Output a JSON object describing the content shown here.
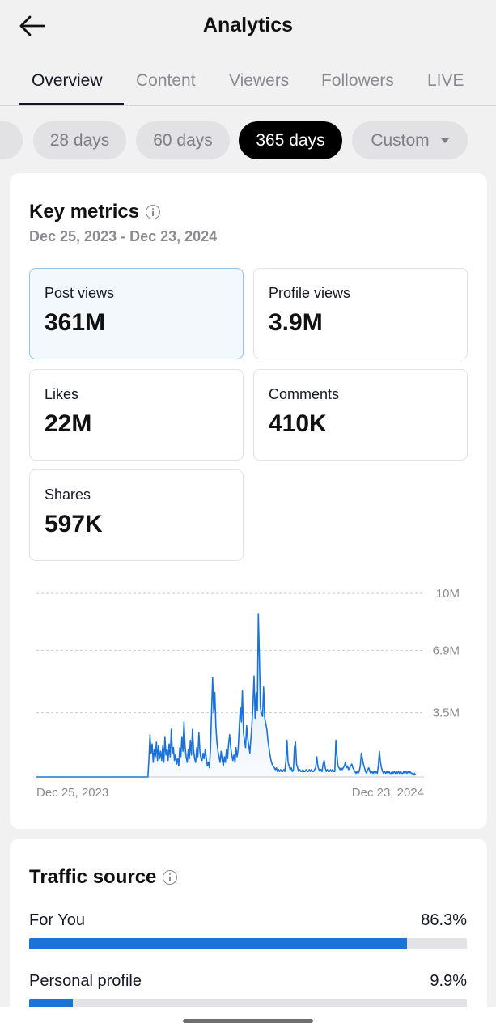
{
  "header": {
    "title": "Analytics"
  },
  "tabs": [
    {
      "label": "Overview",
      "active": true
    },
    {
      "label": "Content",
      "active": false
    },
    {
      "label": "Viewers",
      "active": false
    },
    {
      "label": "Followers",
      "active": false
    },
    {
      "label": "LIVE",
      "active": false
    }
  ],
  "ranges": [
    {
      "label": "28 days",
      "active": false
    },
    {
      "label": "60 days",
      "active": false
    },
    {
      "label": "365 days",
      "active": true
    },
    {
      "label": "Custom",
      "active": false
    }
  ],
  "key_metrics": {
    "title": "Key metrics",
    "date_range": "Dec 25, 2023 - Dec 23, 2024",
    "metrics": [
      {
        "label": "Post views",
        "value": "361M",
        "selected": true
      },
      {
        "label": "Profile views",
        "value": "3.9M",
        "selected": false
      },
      {
        "label": "Likes",
        "value": "22M",
        "selected": false
      },
      {
        "label": "Comments",
        "value": "410K",
        "selected": false
      },
      {
        "label": "Shares",
        "value": "597K",
        "selected": false
      }
    ]
  },
  "chart_data": {
    "type": "area",
    "title": "",
    "xlabel": "",
    "ylabel": "",
    "x_tick_labels": [
      "Dec 25, 2023",
      "Dec 23, 2024"
    ],
    "y_tick_labels": [
      "10M",
      "6.9M",
      "3.5M"
    ],
    "y_ticks": [
      10,
      6.9,
      3.5
    ],
    "ylim": [
      0,
      10.4
    ],
    "xlim": [
      0,
      365
    ],
    "grid": true,
    "color": "#1b73d9",
    "series": [
      {
        "values": [
          [
            0,
            0
          ],
          [
            105,
            0
          ],
          [
            106,
            1.0
          ],
          [
            107,
            2.3
          ],
          [
            108,
            1.3
          ],
          [
            109,
            1.8
          ],
          [
            110,
            0.8
          ],
          [
            111,
            1.5
          ],
          [
            112,
            1.1
          ],
          [
            113,
            1.9
          ],
          [
            114,
            0.9
          ],
          [
            115,
            1.7
          ],
          [
            116,
            1.0
          ],
          [
            117,
            1.4
          ],
          [
            118,
            0.9
          ],
          [
            119,
            1.7
          ],
          [
            120,
            0.8
          ],
          [
            121,
            2.2
          ],
          [
            122,
            1.2
          ],
          [
            123,
            1.5
          ],
          [
            124,
            0.9
          ],
          [
            125,
            1.8
          ],
          [
            126,
            1.1
          ],
          [
            127,
            2.6
          ],
          [
            128,
            1.3
          ],
          [
            129,
            1.6
          ],
          [
            130,
            0.9
          ],
          [
            131,
            1.2
          ],
          [
            132,
            0.7
          ],
          [
            133,
            1.0
          ],
          [
            134,
            0.6
          ],
          [
            135,
            1.6
          ],
          [
            136,
            1.1
          ],
          [
            137,
            2.2
          ],
          [
            138,
            1.4
          ],
          [
            139,
            3.0
          ],
          [
            140,
            1.7
          ],
          [
            141,
            1.1
          ],
          [
            142,
            0.8
          ],
          [
            143,
            1.5
          ],
          [
            144,
            1.0
          ],
          [
            145,
            2.0
          ],
          [
            146,
            1.2
          ],
          [
            147,
            2.6
          ],
          [
            148,
            1.5
          ],
          [
            149,
            1.0
          ],
          [
            150,
            0.8
          ],
          [
            151,
            1.6
          ],
          [
            152,
            1.1
          ],
          [
            153,
            2.4
          ],
          [
            154,
            1.4
          ],
          [
            155,
            1.0
          ],
          [
            156,
            0.9
          ],
          [
            157,
            1.3
          ],
          [
            158,
            1.0
          ],
          [
            159,
            1.5
          ],
          [
            160,
            1.0
          ],
          [
            161,
            0.6
          ],
          [
            162,
            0.8
          ],
          [
            163,
            0.5
          ],
          [
            164,
            1.6
          ],
          [
            165,
            3.6
          ],
          [
            166,
            5.4
          ],
          [
            167,
            3.5
          ],
          [
            168,
            4.6
          ],
          [
            169,
            2.8
          ],
          [
            170,
            1.9
          ],
          [
            171,
            1.4
          ],
          [
            172,
            1.1
          ],
          [
            173,
            0.8
          ],
          [
            174,
            1.4
          ],
          [
            175,
            0.9
          ],
          [
            176,
            0.6
          ],
          [
            177,
            1.1
          ],
          [
            178,
            0.8
          ],
          [
            179,
            1.5
          ],
          [
            180,
            1.0
          ],
          [
            181,
            1.8
          ],
          [
            182,
            2.3
          ],
          [
            183,
            1.6
          ],
          [
            184,
            1.2
          ],
          [
            185,
            0.9
          ],
          [
            186,
            1.2
          ],
          [
            187,
            0.8
          ],
          [
            188,
            1.6
          ],
          [
            189,
            1.1
          ],
          [
            190,
            1.5
          ],
          [
            191,
            2.7
          ],
          [
            192,
            3.8
          ],
          [
            193,
            3.0
          ],
          [
            194,
            4.7
          ],
          [
            195,
            2.4
          ],
          [
            196,
            2.0
          ],
          [
            197,
            1.6
          ],
          [
            198,
            2.8
          ],
          [
            199,
            2.1
          ],
          [
            200,
            1.7
          ],
          [
            201,
            1.3
          ],
          [
            202,
            2.1
          ],
          [
            203,
            2.9
          ],
          [
            204,
            4.0
          ],
          [
            205,
            5.5
          ],
          [
            206,
            3.2
          ],
          [
            207,
            4.6
          ],
          [
            208,
            3.6
          ],
          [
            209,
            8.9
          ],
          [
            210,
            6.5
          ],
          [
            211,
            3.8
          ],
          [
            212,
            3.4
          ],
          [
            213,
            3.3
          ],
          [
            214,
            4.9
          ],
          [
            215,
            3.2
          ],
          [
            216,
            2.9
          ],
          [
            217,
            2.6
          ],
          [
            218,
            2.0
          ],
          [
            219,
            1.6
          ],
          [
            220,
            1.2
          ],
          [
            221,
            0.9
          ],
          [
            222,
            0.7
          ],
          [
            223,
            0.6
          ],
          [
            224,
            0.5
          ],
          [
            225,
            0.4
          ],
          [
            226,
            0.5
          ],
          [
            227,
            0.3
          ],
          [
            228,
            0.4
          ],
          [
            229,
            0.3
          ],
          [
            230,
            0.4
          ],
          [
            231,
            0.3
          ],
          [
            232,
            0.3
          ],
          [
            233,
            0.4
          ],
          [
            234,
            0.3
          ],
          [
            235,
            0.9
          ],
          [
            236,
            2.0
          ],
          [
            237,
            0.8
          ],
          [
            238,
            0.6
          ],
          [
            239,
            0.4
          ],
          [
            240,
            0.5
          ],
          [
            241,
            0.3
          ],
          [
            242,
            0.4
          ],
          [
            243,
            1.6
          ],
          [
            244,
            1.9
          ],
          [
            245,
            0.7
          ],
          [
            246,
            0.5
          ],
          [
            247,
            0.3
          ],
          [
            248,
            0.4
          ],
          [
            249,
            0.3
          ],
          [
            250,
            0.3
          ],
          [
            251,
            0.4
          ],
          [
            252,
            0.3
          ],
          [
            253,
            0.3
          ],
          [
            254,
            0.4
          ],
          [
            255,
            0.3
          ],
          [
            256,
            0.3
          ],
          [
            257,
            0.4
          ],
          [
            258,
            0.3
          ],
          [
            259,
            0.4
          ],
          [
            260,
            0.3
          ],
          [
            261,
            0.3
          ],
          [
            262,
            0.4
          ],
          [
            263,
            0.5
          ],
          [
            264,
            1.1
          ],
          [
            265,
            0.6
          ],
          [
            266,
            0.4
          ],
          [
            267,
            0.3
          ],
          [
            268,
            0.4
          ],
          [
            269,
            0.3
          ],
          [
            270,
            0.7
          ],
          [
            271,
            0.9
          ],
          [
            272,
            0.5
          ],
          [
            273,
            0.3
          ],
          [
            274,
            0.4
          ],
          [
            275,
            0.3
          ],
          [
            276,
            0.3
          ],
          [
            277,
            0.4
          ],
          [
            278,
            0.3
          ],
          [
            279,
            0.4
          ],
          [
            280,
            0.3
          ],
          [
            281,
            0.3
          ],
          [
            282,
            2.0
          ],
          [
            283,
            1.2
          ],
          [
            284,
            0.6
          ],
          [
            285,
            0.5
          ],
          [
            286,
            0.4
          ],
          [
            287,
            0.5
          ],
          [
            288,
            0.4
          ],
          [
            289,
            0.5
          ],
          [
            290,
            0.6
          ],
          [
            291,
            0.8
          ],
          [
            292,
            0.5
          ],
          [
            293,
            0.6
          ],
          [
            294,
            0.4
          ],
          [
            295,
            0.5
          ],
          [
            296,
            0.6
          ],
          [
            297,
            0.7
          ],
          [
            298,
            0.5
          ],
          [
            299,
            0.4
          ],
          [
            300,
            0.3
          ],
          [
            301,
            0.2
          ],
          [
            302,
            0.3
          ],
          [
            303,
            0.2
          ],
          [
            304,
            0.3
          ],
          [
            305,
            0.6
          ],
          [
            306,
            1.3
          ],
          [
            307,
            1.0
          ],
          [
            308,
            0.7
          ],
          [
            309,
            0.5
          ],
          [
            310,
            0.3
          ],
          [
            311,
            0.2
          ],
          [
            312,
            0.4
          ],
          [
            313,
            0.5
          ],
          [
            314,
            0.3
          ],
          [
            315,
            0.2
          ],
          [
            316,
            0.3
          ],
          [
            317,
            0.2
          ],
          [
            318,
            0.3
          ],
          [
            319,
            0.2
          ],
          [
            320,
            0.3
          ],
          [
            321,
            0.2
          ],
          [
            322,
            0.6
          ],
          [
            323,
            1.4
          ],
          [
            324,
            0.8
          ],
          [
            325,
            0.5
          ],
          [
            326,
            0.3
          ],
          [
            327,
            0.2
          ],
          [
            328,
            0.3
          ],
          [
            329,
            0.2
          ],
          [
            330,
            0.3
          ],
          [
            331,
            0.2
          ],
          [
            332,
            0.3
          ],
          [
            333,
            0.2
          ],
          [
            334,
            0.2
          ],
          [
            335,
            0.3
          ],
          [
            336,
            0.2
          ],
          [
            337,
            0.3
          ],
          [
            338,
            0.2
          ],
          [
            339,
            0.3
          ],
          [
            340,
            0.2
          ],
          [
            341,
            0.3
          ],
          [
            342,
            0.2
          ],
          [
            343,
            0.3
          ],
          [
            344,
            0.2
          ],
          [
            345,
            0.2
          ],
          [
            346,
            0.3
          ],
          [
            347,
            0.2
          ],
          [
            348,
            0.3
          ],
          [
            349,
            0.2
          ],
          [
            350,
            0.3
          ],
          [
            351,
            0.2
          ],
          [
            352,
            0.3
          ],
          [
            353,
            0.2
          ],
          [
            354,
            0.2
          ],
          [
            355,
            0.1
          ],
          [
            356,
            0.2
          ],
          [
            357,
            0.1
          ]
        ]
      }
    ]
  },
  "traffic_source": {
    "title": "Traffic source",
    "sources": [
      {
        "label": "For You",
        "percent": "86.3%",
        "fraction": 0.863
      },
      {
        "label": "Personal profile",
        "percent": "9.9%",
        "fraction": 0.099
      }
    ]
  }
}
